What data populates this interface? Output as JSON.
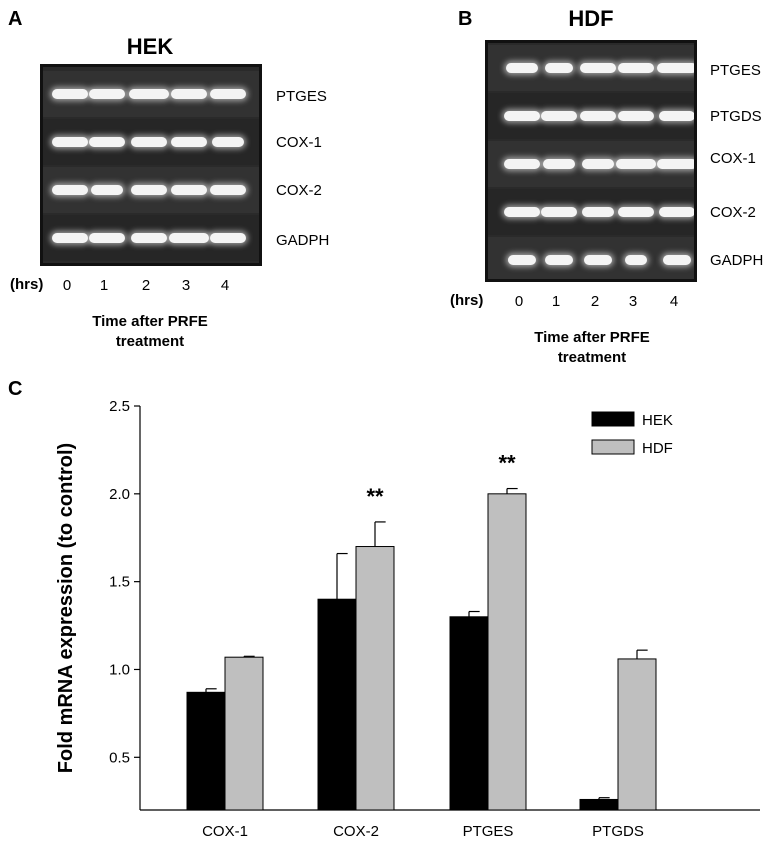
{
  "panel_a": {
    "letter": "A",
    "title": "HEK",
    "genes": [
      "PTGES",
      "COX-1",
      "COX-2",
      "GADPH"
    ],
    "hrs_label": "(hrs)",
    "lanes": [
      "0",
      "1",
      "2",
      "3",
      "4"
    ],
    "caption_line1": "Time after PRFE",
    "caption_line2": "treatment"
  },
  "panel_b": {
    "letter": "B",
    "title": "HDF",
    "genes": [
      "PTGES",
      "PTGDS",
      "COX-1",
      "COX-2",
      "GADPH"
    ],
    "hrs_label": "(hrs)",
    "lanes": [
      "0",
      "1",
      "2",
      "3",
      "4"
    ],
    "caption_line1": "Time after PRFE",
    "caption_line2": "treatment"
  },
  "panel_c": {
    "letter": "C"
  },
  "chart_data": {
    "type": "bar",
    "ylabel": "Fold mRNA expression (to control)",
    "ylim": [
      0.2,
      2.5
    ],
    "yticks": [
      "0.5",
      "1.0",
      "1.5",
      "2.0",
      "2.5"
    ],
    "categories": [
      "COX-1",
      "COX-2",
      "PTGES",
      "PTGDS"
    ],
    "series": [
      {
        "name": "HEK",
        "color": "#000000",
        "values": [
          0.87,
          1.4,
          1.3,
          0.26
        ],
        "errors": [
          0.02,
          0.26,
          0.03,
          0.01
        ]
      },
      {
        "name": "HDF",
        "color": "#bfbfbf",
        "values": [
          1.07,
          1.7,
          2.0,
          1.06
        ],
        "errors": [
          0.005,
          0.14,
          0.03,
          0.05
        ]
      }
    ],
    "annotations": [
      {
        "category": "COX-2",
        "series": "HDF",
        "text": "**"
      },
      {
        "category": "PTGES",
        "series": "HDF",
        "text": "**"
      }
    ],
    "legend": "top-right"
  }
}
